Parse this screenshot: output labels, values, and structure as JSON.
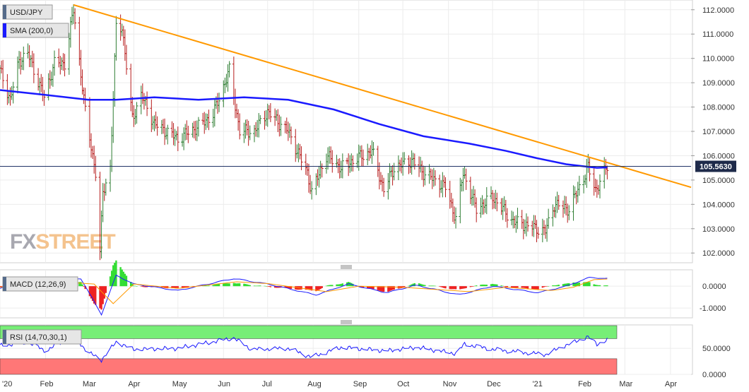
{
  "chart_data": [
    {
      "panel": "price",
      "type": "ohlc",
      "title": "USD/JPY",
      "legend_position": "top-left",
      "grid": true,
      "watermark": "FXSTREET",
      "last_price_label": "105.5630",
      "last_price": 105.563,
      "y_ticks": [
        "112.0000",
        "111.0000",
        "110.0000",
        "109.0000",
        "108.0000",
        "107.0000",
        "106.0000",
        "105.0000",
        "104.0000",
        "103.0000",
        "102.0000"
      ],
      "ylim": [
        101.6,
        112.4
      ],
      "x_tick_labels": [
        "'20",
        "Feb",
        "Mar",
        "Apr",
        "May",
        "Jun",
        "Jul",
        "Aug",
        "Sep",
        "Oct",
        "Nov",
        "Dec",
        "'21",
        "Feb",
        "Mar",
        "Apr"
      ],
      "x_domain_dates": [
        "2020-01-01",
        "2021-04-15"
      ],
      "indicator_label": "SMA (200,0)",
      "sma_200": {
        "color": "#1a1aff",
        "points": [
          [
            "2020-01-01",
            108.7
          ],
          [
            "2020-02-01",
            108.5
          ],
          [
            "2020-03-01",
            108.3
          ],
          [
            "2020-03-20",
            108.3
          ],
          [
            "2020-04-15",
            108.4
          ],
          [
            "2020-05-15",
            108.3
          ],
          [
            "2020-06-15",
            108.4
          ],
          [
            "2020-07-15",
            108.3
          ],
          [
            "2020-08-15",
            107.9
          ],
          [
            "2020-09-15",
            107.3
          ],
          [
            "2020-10-15",
            106.8
          ],
          [
            "2020-11-15",
            106.5
          ],
          [
            "2020-12-10",
            106.2
          ],
          [
            "2020-12-31",
            105.9
          ],
          [
            "2021-01-20",
            105.65
          ],
          [
            "2021-02-10",
            105.5
          ],
          [
            "2021-02-17",
            105.52
          ]
        ]
      },
      "trendline": {
        "color": "#ff9900",
        "points": [
          [
            "2020-02-20",
            112.2
          ],
          [
            "2021-04-15",
            104.7
          ]
        ]
      },
      "ohlc_anchor_closes": [
        [
          "2020-01-01",
          109.5
        ],
        [
          "2020-01-08",
          108.3
        ],
        [
          "2020-01-14",
          109.9
        ],
        [
          "2020-01-20",
          110.2
        ],
        [
          "2020-01-31",
          108.4
        ],
        [
          "2020-02-07",
          109.8
        ],
        [
          "2020-02-14",
          109.8
        ],
        [
          "2020-02-20",
          112.0
        ],
        [
          "2020-02-28",
          107.8
        ],
        [
          "2020-03-06",
          105.3
        ],
        [
          "2020-03-09",
          102.0
        ],
        [
          "2020-03-11",
          104.5
        ],
        [
          "2020-03-16",
          105.5
        ],
        [
          "2020-03-20",
          111.3
        ],
        [
          "2020-03-24",
          111.3
        ],
        [
          "2020-03-31",
          107.5
        ],
        [
          "2020-04-06",
          108.5
        ],
        [
          "2020-04-15",
          107.3
        ],
        [
          "2020-05-01",
          106.7
        ],
        [
          "2020-05-15",
          107.2
        ],
        [
          "2020-05-25",
          107.7
        ],
        [
          "2020-06-05",
          109.5
        ],
        [
          "2020-06-12",
          107.0
        ],
        [
          "2020-06-22",
          107.0
        ],
        [
          "2020-07-01",
          107.8
        ],
        [
          "2020-07-15",
          107.0
        ],
        [
          "2020-07-28",
          105.3
        ],
        [
          "2020-07-31",
          104.5
        ],
        [
          "2020-08-10",
          106.0
        ],
        [
          "2020-08-20",
          105.5
        ],
        [
          "2020-08-31",
          105.9
        ],
        [
          "2020-09-10",
          106.2
        ],
        [
          "2020-09-18",
          104.6
        ],
        [
          "2020-09-25",
          105.5
        ],
        [
          "2020-10-07",
          105.8
        ],
        [
          "2020-10-15",
          105.3
        ],
        [
          "2020-10-30",
          104.7
        ],
        [
          "2020-11-06",
          103.4
        ],
        [
          "2020-11-11",
          105.3
        ],
        [
          "2020-11-20",
          103.8
        ],
        [
          "2020-12-01",
          104.3
        ],
        [
          "2020-12-15",
          103.3
        ],
        [
          "2021-01-06",
          102.9
        ],
        [
          "2021-01-12",
          104.0
        ],
        [
          "2021-01-22",
          103.8
        ],
        [
          "2021-02-04",
          105.5
        ],
        [
          "2021-02-09",
          104.6
        ],
        [
          "2021-02-12",
          104.9
        ],
        [
          "2021-02-17",
          105.56
        ]
      ]
    },
    {
      "panel": "macd",
      "type": "histogram+line",
      "legend_label": "MACD (12,26,9)",
      "y_ticks": [
        "0.0000",
        "-1.0000"
      ],
      "ylim": [
        -1.45,
        0.75
      ],
      "macd_anchor": [
        [
          "2020-01-01",
          -0.1
        ],
        [
          "2020-02-05",
          0.3
        ],
        [
          "2020-02-25",
          0.35
        ],
        [
          "2020-03-10",
          -1.3
        ],
        [
          "2020-03-20",
          0.5
        ],
        [
          "2020-04-01",
          0.1
        ],
        [
          "2020-05-01",
          -0.2
        ],
        [
          "2020-06-08",
          0.35
        ],
        [
          "2020-07-01",
          0.1
        ],
        [
          "2020-08-03",
          -0.4
        ],
        [
          "2020-08-25",
          0.1
        ],
        [
          "2020-09-20",
          -0.3
        ],
        [
          "2020-10-10",
          0.05
        ],
        [
          "2020-11-08",
          -0.4
        ],
        [
          "2020-12-01",
          0.0
        ],
        [
          "2021-01-01",
          -0.3
        ],
        [
          "2021-01-20",
          0.0
        ],
        [
          "2021-02-05",
          0.4
        ],
        [
          "2021-02-17",
          0.35
        ]
      ],
      "signal_anchor": [
        [
          "2020-01-01",
          -0.05
        ],
        [
          "2020-02-10",
          0.2
        ],
        [
          "2020-03-05",
          0.1
        ],
        [
          "2020-03-18",
          -0.8
        ],
        [
          "2020-04-01",
          0.1
        ],
        [
          "2020-05-01",
          -0.1
        ],
        [
          "2020-06-10",
          0.2
        ],
        [
          "2020-07-01",
          0.12
        ],
        [
          "2020-08-10",
          -0.25
        ],
        [
          "2020-09-01",
          0.0
        ],
        [
          "2020-10-01",
          -0.05
        ],
        [
          "2020-11-15",
          -0.25
        ],
        [
          "2020-12-10",
          -0.05
        ],
        [
          "2021-01-10",
          -0.2
        ],
        [
          "2021-01-25",
          -0.05
        ],
        [
          "2021-02-08",
          0.3
        ],
        [
          "2021-02-17",
          0.33
        ]
      ],
      "positive_color": "#33dd33",
      "negative_color": "#ee2222",
      "macd_color": "#1a1aff",
      "signal_color": "#ff9900"
    },
    {
      "panel": "rsi",
      "type": "line",
      "legend_label": "RSI (14,70,30,1)",
      "y_ticks": [
        "50.0000",
        "0.0000"
      ],
      "ylim": [
        0,
        95
      ],
      "overbought_level": 70,
      "oversold_level": 30,
      "overbought_color": "#77ee77",
      "oversold_color": "#ff7777",
      "line_color": "#1a1aff",
      "rsi_anchor": [
        [
          "2020-01-01",
          55
        ],
        [
          "2020-01-20",
          62
        ],
        [
          "2020-02-01",
          45
        ],
        [
          "2020-02-20",
          74
        ],
        [
          "2020-03-01",
          42
        ],
        [
          "2020-03-10",
          28
        ],
        [
          "2020-03-20",
          62
        ],
        [
          "2020-04-01",
          48
        ],
        [
          "2020-05-01",
          50
        ],
        [
          "2020-06-08",
          70
        ],
        [
          "2020-06-20",
          48
        ],
        [
          "2020-07-15",
          50
        ],
        [
          "2020-07-31",
          33
        ],
        [
          "2020-08-20",
          52
        ],
        [
          "2020-09-20",
          45
        ],
        [
          "2020-10-10",
          52
        ],
        [
          "2020-11-06",
          40
        ],
        [
          "2020-11-12",
          58
        ],
        [
          "2020-12-01",
          48
        ],
        [
          "2021-01-06",
          38
        ],
        [
          "2021-01-20",
          56
        ],
        [
          "2021-02-04",
          72
        ],
        [
          "2021-02-10",
          58
        ],
        [
          "2021-02-17",
          66
        ]
      ]
    }
  ]
}
